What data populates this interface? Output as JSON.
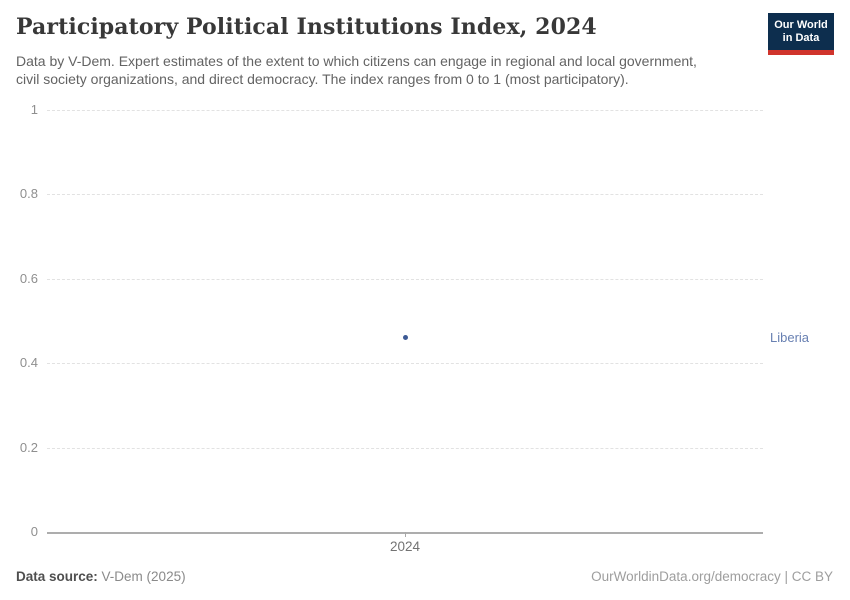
{
  "header": {
    "title": "Participatory Political Institutions Index, 2024",
    "subtitle": [
      "Data by V-Dem. Expert estimates of the extent to which citizens can engage in regional and local government,",
      "civil society organizations, and direct democracy. The index ranges from 0 to 1 (most participatory)."
    ],
    "logo": {
      "line1": "Our World",
      "line2": "in Data"
    }
  },
  "chart_data": {
    "type": "scatter",
    "title": "Participatory Political Institutions Index, 2024",
    "x": [
      2024
    ],
    "xticks": [
      "2024"
    ],
    "series": [
      {
        "name": "Liberia",
        "values": [
          0.46
        ]
      }
    ],
    "yticks": [
      0,
      0.2,
      0.4,
      0.6,
      0.8,
      1
    ],
    "ylim": [
      0,
      1
    ],
    "grid": "horizontal-dashed",
    "legend_position": "right-of-point",
    "point_color": "#3d5a95",
    "label_color": "#6880b2"
  },
  "footer": {
    "source_label": "Data source:",
    "source_value": "V-Dem (2025)",
    "right_text": "OurWorldinData.org/democracy | CC BY"
  }
}
